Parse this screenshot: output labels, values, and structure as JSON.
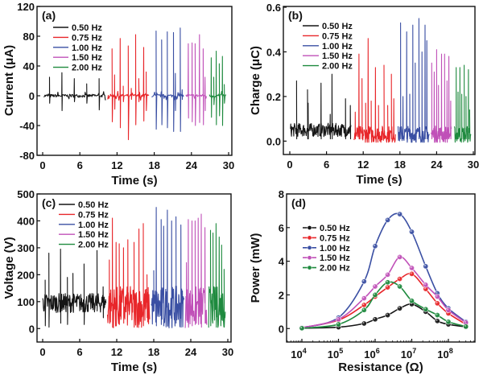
{
  "series_colors": {
    "0.50 Hz": "#151515",
    "0.75 Hz": "#e8262a",
    "1.00 Hz": "#3a4fa3",
    "1.50 Hz": "#c050b8",
    "2.00 Hz": "#1e8a3e"
  },
  "chart_data": [
    {
      "panel_label": "(a)",
      "type": "line",
      "title": "",
      "xlabel": "Time (s)",
      "ylabel": "Current (μA)",
      "xlim": [
        0,
        30
      ],
      "ylim": [
        -80,
        120
      ],
      "xticks": [
        0,
        6,
        12,
        18,
        24,
        30
      ],
      "yticks": [
        -80,
        -40,
        0,
        40,
        80,
        120
      ],
      "legend": [
        "0.50 Hz",
        "0.75 Hz",
        "1.00 Hz",
        "1.50 Hz",
        "2.00 Hz"
      ],
      "legend_position": "top-left",
      "baseline": 0,
      "noise": 2,
      "series": [
        {
          "name": "0.50 Hz",
          "t_range": [
            0.2,
            10.2
          ],
          "peaks": [
            [
              1.1,
              25,
              -10
            ],
            [
              3.1,
              31,
              -20
            ],
            [
              5.1,
              23,
              -8
            ],
            [
              7.1,
              16,
              -10
            ],
            [
              9.1,
              23,
              -19
            ]
          ]
        },
        {
          "name": "0.75 Hz",
          "t_range": [
            10.5,
            17.2
          ],
          "peaks": [
            [
              11.2,
              63,
              -35
            ],
            [
              11.6,
              28,
              -18
            ],
            [
              12.5,
              77,
              -43
            ],
            [
              13.0,
              13,
              -8
            ],
            [
              13.8,
              67,
              -59
            ],
            [
              14.3,
              10,
              -5
            ],
            [
              15.0,
              82,
              -39
            ],
            [
              15.5,
              23,
              -8
            ],
            [
              16.3,
              65,
              -34
            ],
            [
              16.7,
              32,
              -20
            ]
          ]
        },
        {
          "name": "1.00 Hz",
          "t_range": [
            17.6,
            22.8
          ],
          "peaks": [
            [
              18.3,
              87,
              -45
            ],
            [
              19.2,
              75,
              -39
            ],
            [
              20.1,
              86,
              -43
            ],
            [
              21.1,
              85,
              -48
            ],
            [
              21.4,
              30,
              -20
            ],
            [
              22.2,
              91,
              -48
            ],
            [
              22.5,
              8,
              -5
            ]
          ]
        },
        {
          "name": "1.50 Hz",
          "t_range": [
            23.1,
            26.5
          ],
          "peaks": [
            [
              23.5,
              70,
              -30
            ],
            [
              24.1,
              71,
              -35
            ],
            [
              24.6,
              70,
              -40
            ],
            [
              25.3,
              82,
              -36
            ],
            [
              25.9,
              63,
              -39
            ],
            [
              26.2,
              25,
              -20
            ]
          ]
        },
        {
          "name": "2.00 Hz",
          "t_range": [
            26.9,
            29.6
          ],
          "peaks": [
            [
              27.2,
              51,
              -29
            ],
            [
              27.6,
              25,
              -12
            ],
            [
              28.0,
              60,
              -39
            ],
            [
              28.5,
              43,
              -27
            ],
            [
              29.0,
              53,
              -40
            ],
            [
              29.3,
              15,
              -10
            ]
          ]
        }
      ]
    },
    {
      "panel_label": "(b)",
      "type": "line",
      "title": "",
      "xlabel": "Time (s)",
      "ylabel": "Charge (μC)",
      "xlim": [
        0,
        30
      ],
      "ylim": [
        -0.06,
        0.6
      ],
      "xticks": [
        0,
        6,
        12,
        18,
        24,
        30
      ],
      "yticks": [
        0.0,
        0.2,
        0.4,
        0.6
      ],
      "ytick_labels": [
        "0.0",
        "0.2",
        "0.4",
        "0.6"
      ],
      "legend": [
        "0.50 Hz",
        "0.75 Hz",
        "1.00 Hz",
        "1.50 Hz",
        "2.00 Hz"
      ],
      "legend_position": "top-left",
      "baseline": 0.04,
      "noise": 0.03,
      "series": [
        {
          "name": "0.50 Hz",
          "t_range": [
            0.1,
            10.0
          ],
          "peaks": [
            [
              1.1,
              0.27,
              0
            ],
            [
              2.9,
              0.23,
              0
            ],
            [
              3.0,
              0.17,
              0
            ],
            [
              5.1,
              0.26,
              0
            ],
            [
              6.9,
              0.3,
              0
            ],
            [
              6.6,
              0.12,
              0
            ],
            [
              9.1,
              0.19,
              0
            ],
            [
              9.9,
              0.16,
              0
            ]
          ]
        },
        {
          "name": "0.75 Hz",
          "t_range": [
            10.5,
            17.3
          ],
          "peaks": [
            [
              10.7,
              0.13,
              0
            ],
            [
              11.3,
              0.39,
              0
            ],
            [
              11.8,
              0.28,
              0
            ],
            [
              12.4,
              0.17,
              0
            ],
            [
              12.8,
              0.46,
              0
            ],
            [
              13.3,
              0.18,
              0
            ],
            [
              14.0,
              0.33,
              0
            ],
            [
              14.5,
              0.16,
              0
            ],
            [
              15.4,
              0.34,
              0
            ],
            [
              16.0,
              0.16,
              0
            ],
            [
              16.6,
              0.3,
              0
            ],
            [
              17.0,
              0.19,
              0
            ]
          ]
        },
        {
          "name": "1.00 Hz",
          "t_range": [
            17.7,
            22.8
          ],
          "peaks": [
            [
              18.1,
              0.53,
              0
            ],
            [
              18.5,
              0.2,
              0
            ],
            [
              19.1,
              0.49,
              0
            ],
            [
              19.6,
              0.21,
              0
            ],
            [
              20.1,
              0.52,
              0
            ],
            [
              20.5,
              0.35,
              0
            ],
            [
              21.1,
              0.55,
              0
            ],
            [
              21.6,
              0.4,
              0
            ],
            [
              22.1,
              0.52,
              0
            ],
            [
              22.4,
              0.45,
              0
            ]
          ]
        },
        {
          "name": "1.50 Hz",
          "t_range": [
            23.1,
            26.4
          ],
          "peaks": [
            [
              23.2,
              0.35,
              0
            ],
            [
              23.6,
              0.31,
              0
            ],
            [
              24.0,
              0.41,
              0
            ],
            [
              24.3,
              0.25,
              0
            ],
            [
              24.8,
              0.39,
              0
            ],
            [
              25.3,
              0.39,
              0
            ],
            [
              25.7,
              0.27,
              0
            ],
            [
              26.0,
              0.38,
              0
            ],
            [
              26.3,
              0.18,
              0
            ]
          ]
        },
        {
          "name": "2.00 Hz",
          "t_range": [
            26.9,
            29.6
          ],
          "peaks": [
            [
              27.2,
              0.33,
              0
            ],
            [
              27.5,
              0.22,
              0
            ],
            [
              27.8,
              0.33,
              0
            ],
            [
              28.1,
              0.21,
              0
            ],
            [
              28.5,
              0.34,
              0
            ],
            [
              28.8,
              0.2,
              0
            ],
            [
              29.2,
              0.32,
              0
            ],
            [
              29.4,
              0.14,
              0
            ]
          ]
        }
      ]
    },
    {
      "panel_label": "(c)",
      "type": "line",
      "title": "",
      "xlabel": "Time (s)",
      "ylabel": "Voltage (V)",
      "xlim": [
        0,
        30
      ],
      "ylim": [
        -50,
        500
      ],
      "xticks": [
        0,
        6,
        12,
        18,
        24,
        30
      ],
      "yticks": [
        0,
        100,
        200,
        300,
        400,
        500
      ],
      "legend": [
        "0.50 Hz",
        "0.75 Hz",
        "1.00 Hz",
        "1.50 Hz",
        "2.00 Hz"
      ],
      "legend_position": "top-left",
      "baseline": 95,
      "noise": 30,
      "series": [
        {
          "name": "0.50 Hz",
          "t_range": [
            0.0,
            10.3
          ],
          "peaks": [
            [
              0.4,
              180,
              10
            ],
            [
              1.0,
              280,
              5
            ],
            [
              2.9,
              295,
              20
            ],
            [
              4.0,
              190,
              15
            ],
            [
              4.9,
              205,
              0
            ],
            [
              6.7,
              240,
              15
            ],
            [
              8.8,
              290,
              0
            ],
            [
              9.8,
              155,
              40
            ]
          ]
        },
        {
          "name": "0.75 Hz",
          "t_range": [
            10.5,
            17.4
          ],
          "peaks": [
            [
              10.8,
              255,
              40
            ],
            [
              11.3,
              410,
              5
            ],
            [
              11.9,
              320,
              10
            ],
            [
              12.4,
              315,
              15
            ],
            [
              13.1,
              300,
              20
            ],
            [
              13.8,
              330,
              0
            ],
            [
              14.8,
              320,
              5
            ],
            [
              15.6,
              370,
              15
            ],
            [
              16.3,
              390,
              10
            ],
            [
              16.9,
              200,
              40
            ]
          ]
        },
        {
          "name": "1.00 Hz",
          "t_range": [
            17.6,
            22.9
          ],
          "peaks": [
            [
              18.0,
              215,
              0
            ],
            [
              18.4,
              450,
              10
            ],
            [
              19.2,
              405,
              15
            ],
            [
              19.6,
              380,
              10
            ],
            [
              20.2,
              440,
              20
            ],
            [
              20.9,
              400,
              10
            ],
            [
              21.6,
              415,
              20
            ],
            [
              22.4,
              385,
              5
            ]
          ]
        },
        {
          "name": "1.50 Hz",
          "t_range": [
            23.1,
            26.6
          ],
          "peaks": [
            [
              23.3,
              245,
              30
            ],
            [
              23.6,
              405,
              5
            ],
            [
              24.2,
              400,
              10
            ],
            [
              24.7,
              400,
              15
            ],
            [
              25.2,
              410,
              0
            ],
            [
              25.7,
              425,
              5
            ],
            [
              26.3,
              375,
              20
            ]
          ]
        },
        {
          "name": "2.00 Hz",
          "t_range": [
            26.9,
            29.6
          ],
          "peaks": [
            [
              27.2,
              365,
              10
            ],
            [
              27.6,
              355,
              0
            ],
            [
              28.1,
              390,
              5
            ],
            [
              28.6,
              340,
              0
            ],
            [
              29.0,
              310,
              0
            ],
            [
              29.4,
              220,
              5
            ]
          ]
        }
      ]
    },
    {
      "panel_label": "(d)",
      "type": "line",
      "title": "",
      "xlabel": "Resistance (Ω)",
      "ylabel": "Power (mW)",
      "xscale": "log",
      "xlim": [
        4000,
        600000000
      ],
      "ylim": [
        -0.8,
        8
      ],
      "xticks": [
        10000,
        100000,
        1000000,
        10000000,
        100000000
      ],
      "xtick_exponents": [
        "4",
        "5",
        "6",
        "7",
        "8"
      ],
      "yticks": [
        0,
        2,
        4,
        6,
        8
      ],
      "legend": [
        "0.50 Hz",
        "0.75 Hz",
        "1.00 Hz",
        "1.50 Hz",
        "2.00 Hz"
      ],
      "legend_position": "top-left",
      "x": [
        10000,
        100000,
        500000,
        1000000,
        2200000,
        4700000,
        10000000,
        24000000,
        50000000,
        100000000,
        300000000
      ],
      "series": [
        {
          "name": "0.50 Hz",
          "values": [
            0.02,
            0.08,
            0.3,
            0.55,
            0.8,
            1.2,
            1.45,
            1.0,
            0.45,
            0.25,
            0.1
          ]
        },
        {
          "name": "0.75 Hz",
          "values": [
            0.05,
            0.5,
            1.4,
            1.9,
            2.45,
            2.95,
            3.25,
            2.35,
            1.5,
            0.9,
            0.25
          ]
        },
        {
          "name": "1.00 Hz",
          "values": [
            0.05,
            0.65,
            2.8,
            4.9,
            6.45,
            6.8,
            5.75,
            3.7,
            2.1,
            1.2,
            0.4
          ]
        },
        {
          "name": "1.50 Hz",
          "values": [
            0.05,
            0.55,
            1.8,
            2.5,
            3.2,
            4.25,
            3.6,
            2.6,
            1.9,
            1.1,
            0.35
          ]
        },
        {
          "name": "2.00 Hz",
          "values": [
            0.02,
            0.25,
            1.1,
            2.0,
            2.75,
            2.5,
            1.65,
            1.15,
            0.8,
            0.4,
            0.12
          ]
        }
      ]
    }
  ]
}
